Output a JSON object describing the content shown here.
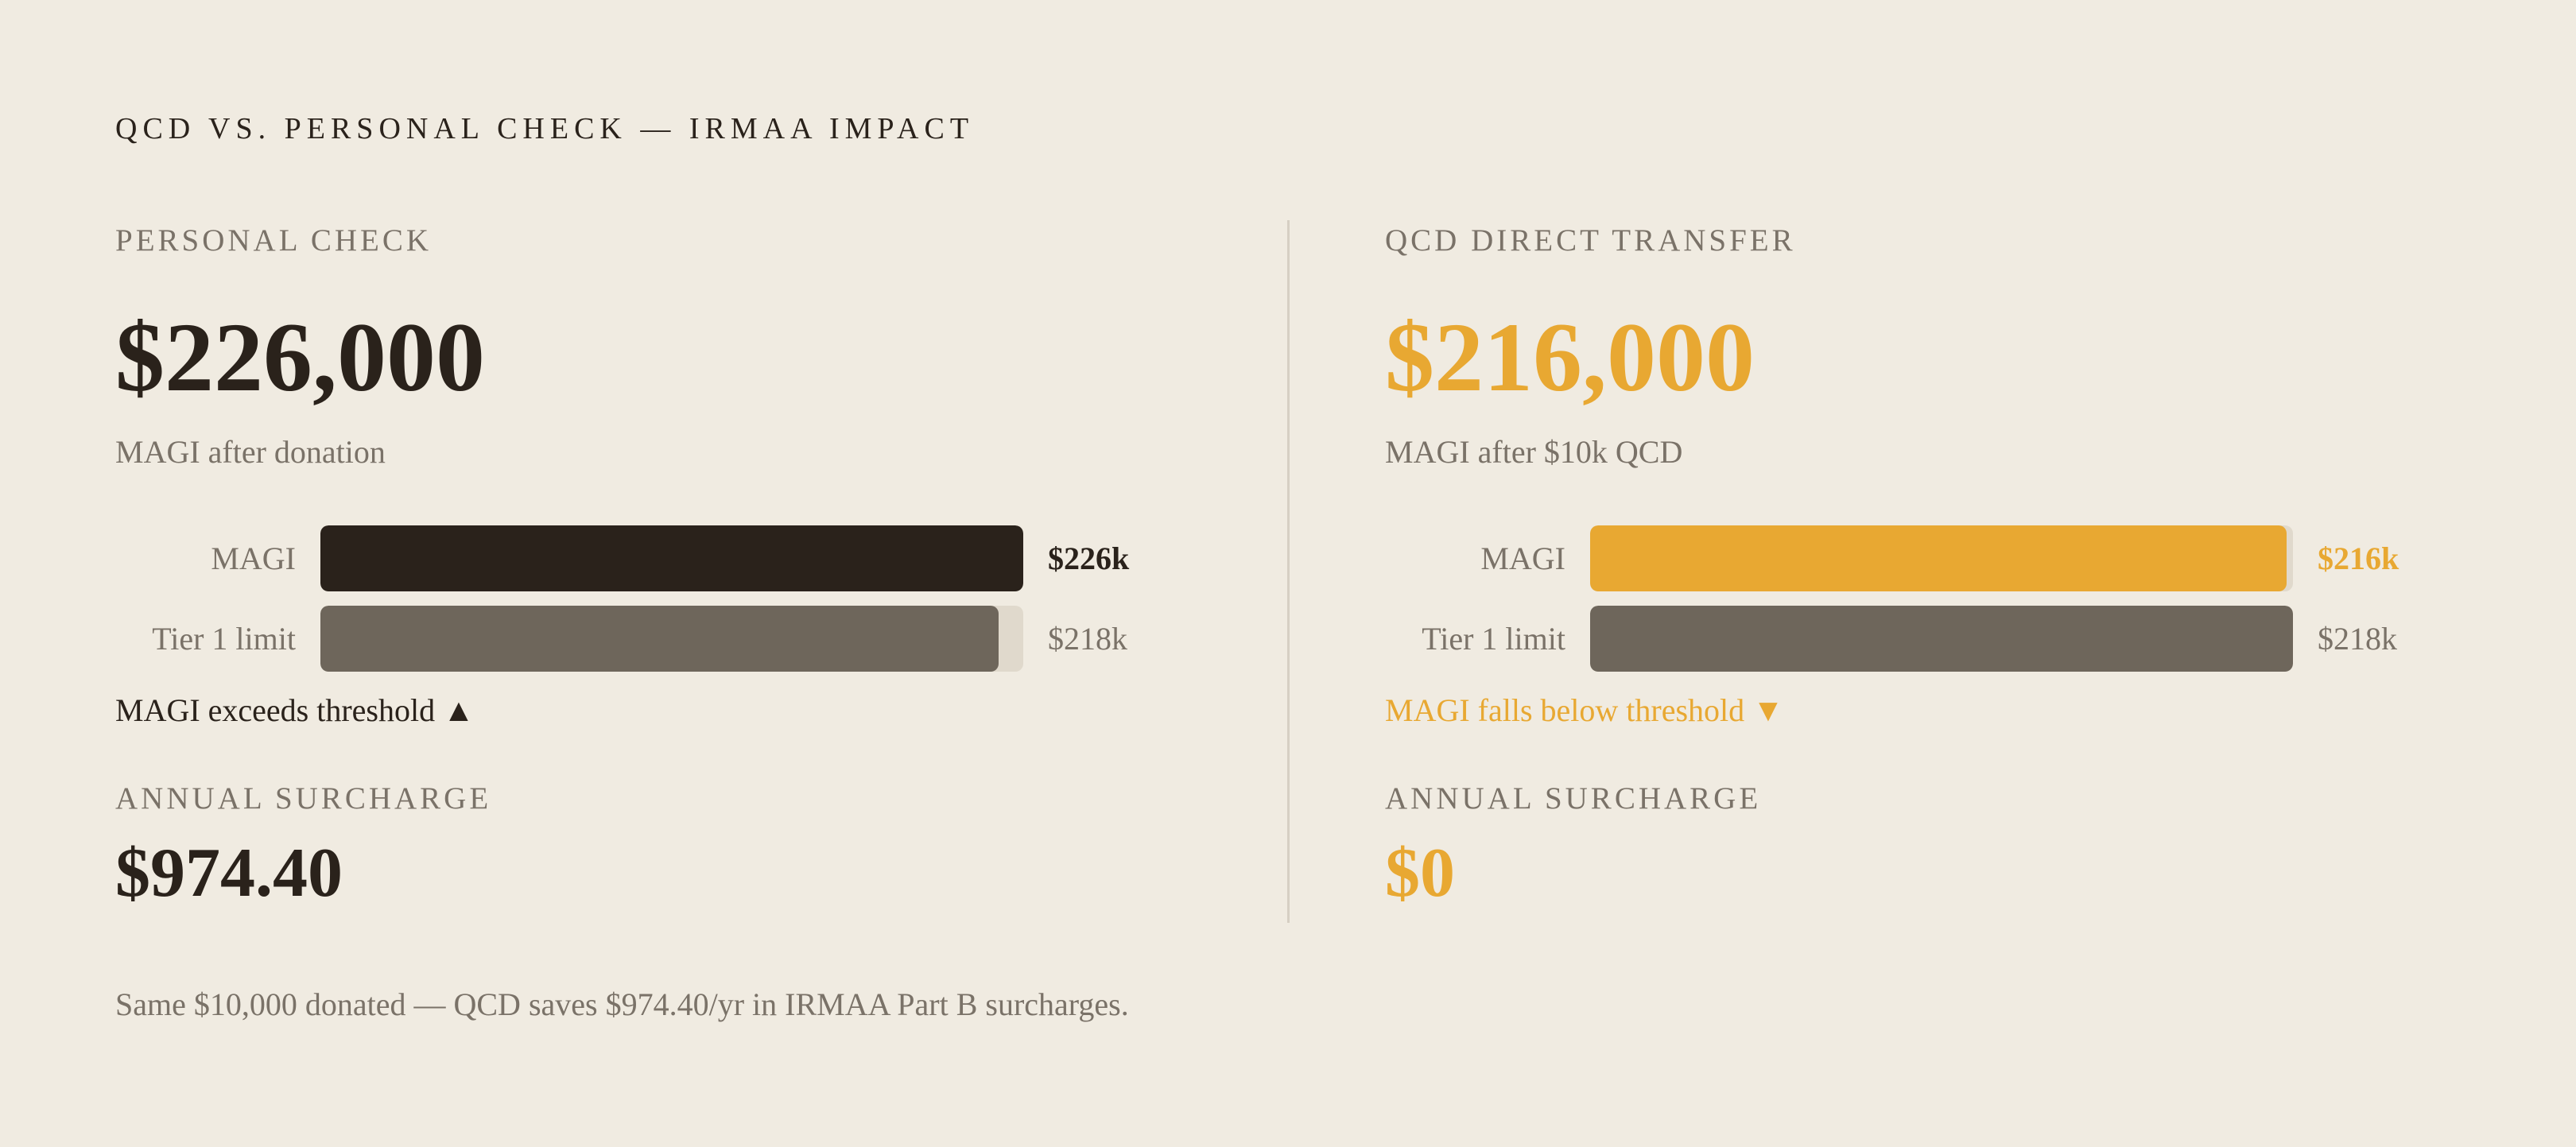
{
  "title": "QCD VS. PERSONAL CHECK — IRMAA IMPACT",
  "panels": [
    {
      "heading": "PERSONAL CHECK",
      "amount": "$226,000",
      "amount_caption": "MAGI after donation",
      "bars": [
        {
          "label": "MAGI",
          "value": 226,
          "value_label": "$226k",
          "color": "#2a221b"
        },
        {
          "label": "Tier 1 limit",
          "value": 218,
          "value_label": "$218k",
          "color": "#6e665b"
        }
      ],
      "status": "MAGI exceeds threshold ▲",
      "surcharge_label": "ANNUAL SURCHARGE",
      "surcharge": "$974.40"
    },
    {
      "heading": "QCD DIRECT TRANSFER",
      "amount": "$216,000",
      "amount_caption": "MAGI after $10k QCD",
      "bars": [
        {
          "label": "MAGI",
          "value": 216,
          "value_label": "$216k",
          "color": "#e8a832"
        },
        {
          "label": "Tier 1 limit",
          "value": 218,
          "value_label": "$218k",
          "color": "#6e665b"
        }
      ],
      "status": "MAGI falls below threshold ▼",
      "surcharge_label": "ANNUAL SURCHARGE",
      "surcharge": "$0"
    }
  ],
  "footnote": "Same $10,000 donated — QCD saves $974.40/yr in IRMAA Part B surcharges."
}
